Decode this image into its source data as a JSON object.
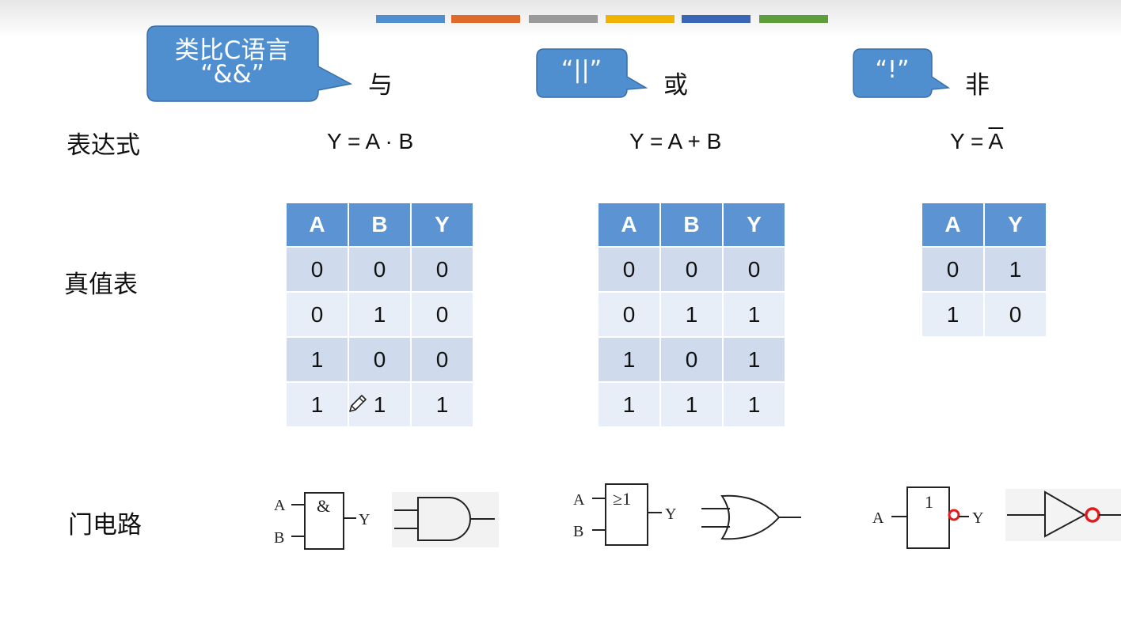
{
  "accent_colors": [
    "#4f8fd0",
    "#e06a2a",
    "#9a9a9a",
    "#f0b400",
    "#3a66b8",
    "#5d9e3a"
  ],
  "callouts": {
    "and": {
      "line1": "类比C语言",
      "line2": "“&&”"
    },
    "or": {
      "text": "“||”"
    },
    "not": {
      "text": "“!”"
    }
  },
  "operations": {
    "and": "与",
    "or": "或",
    "not": "非"
  },
  "row_labels": {
    "expression": "表达式",
    "truth_table": "真值表",
    "gate": "门电路"
  },
  "expressions": {
    "and": "Y = A · B",
    "or": "Y = A + B",
    "not_prefix": "Y = ",
    "not_var": "A"
  },
  "truth_tables": {
    "and": {
      "headers": [
        "A",
        "B",
        "Y"
      ],
      "rows": [
        [
          "0",
          "0",
          "0"
        ],
        [
          "0",
          "1",
          "0"
        ],
        [
          "1",
          "0",
          "0"
        ],
        [
          "1",
          "1",
          "1"
        ]
      ]
    },
    "or": {
      "headers": [
        "A",
        "B",
        "Y"
      ],
      "rows": [
        [
          "0",
          "0",
          "0"
        ],
        [
          "0",
          "1",
          "1"
        ],
        [
          "1",
          "0",
          "1"
        ],
        [
          "1",
          "1",
          "1"
        ]
      ]
    },
    "not": {
      "headers": [
        "A",
        "Y"
      ],
      "rows": [
        [
          "0",
          "1"
        ],
        [
          "1",
          "0"
        ]
      ]
    }
  },
  "gate_symbols": {
    "and": {
      "in1": "A",
      "in2": "B",
      "out": "Y",
      "sym": "&"
    },
    "or": {
      "in1": "A",
      "in2": "B",
      "out": "Y",
      "sym": "≥1"
    },
    "not": {
      "in1": "A",
      "out": "Y",
      "sym": "1"
    }
  }
}
